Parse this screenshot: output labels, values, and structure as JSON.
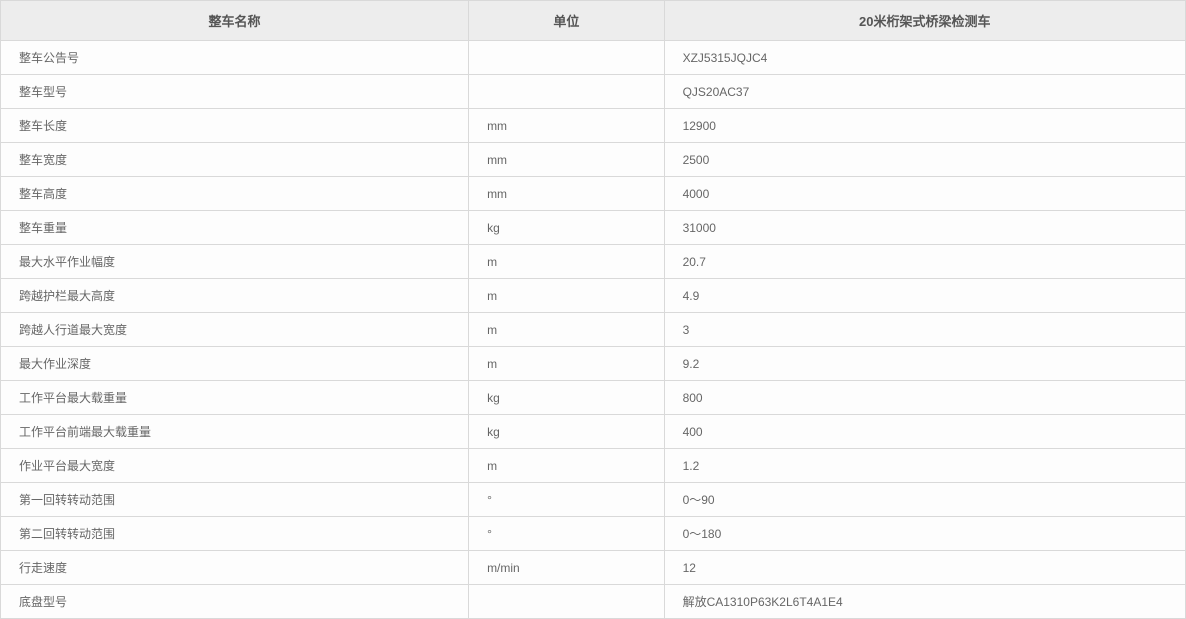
{
  "table": {
    "columns": [
      {
        "label": "整车名称",
        "class": "col-name"
      },
      {
        "label": "单位",
        "class": "col-unit"
      },
      {
        "label": "20米桁架式桥梁检测车",
        "class": "col-value"
      }
    ],
    "rows": [
      {
        "name": "整车公告号",
        "unit": "",
        "value": "XZJ5315JQJC4"
      },
      {
        "name": "整车型号",
        "unit": "",
        "value": "QJS20AC37"
      },
      {
        "name": "整车长度",
        "unit": "mm",
        "value": "12900"
      },
      {
        "name": "整车宽度",
        "unit": "mm",
        "value": "2500"
      },
      {
        "name": "整车高度",
        "unit": "mm",
        "value": "4000"
      },
      {
        "name": "整车重量",
        "unit": "kg",
        "value": "31000"
      },
      {
        "name": "最大水平作业幅度",
        "unit": "m",
        "value": "20.7"
      },
      {
        "name": "跨越护栏最大高度",
        "unit": "m",
        "value": "4.9"
      },
      {
        "name": "跨越人行道最大宽度",
        "unit": "m",
        "value": "3"
      },
      {
        "name": "最大作业深度",
        "unit": "m",
        "value": "9.2"
      },
      {
        "name": "工作平台最大载重量",
        "unit": "kg",
        "value": "800"
      },
      {
        "name": "工作平台前端最大载重量",
        "unit": "kg",
        "value": "400"
      },
      {
        "name": "作业平台最大宽度",
        "unit": "m",
        "value": "1.2"
      },
      {
        "name": "第一回转转动范围",
        "unit": "°",
        "value": "0～90"
      },
      {
        "name": "第二回转转动范围",
        "unit": "°",
        "value": "0～180"
      },
      {
        "name": "行走速度",
        "unit": "m/min",
        "value": "12"
      },
      {
        "name": "底盘型号",
        "unit": "",
        "value": "解放CA1310P63K2L6T4A1E4"
      }
    ],
    "styling": {
      "header_bg": "#ededed",
      "header_text_color": "#555555",
      "header_fontsize": 13,
      "cell_text_color": "#666666",
      "cell_fontsize": 12,
      "cell_bg": "#fdfdfd",
      "border_color": "#d9d9d9",
      "body_bg": "#fdfdfd",
      "font_family": "Microsoft YaHei, Arial, sans-serif",
      "col_widths": [
        "39.5%",
        "16.5%",
        "44%"
      ]
    }
  }
}
